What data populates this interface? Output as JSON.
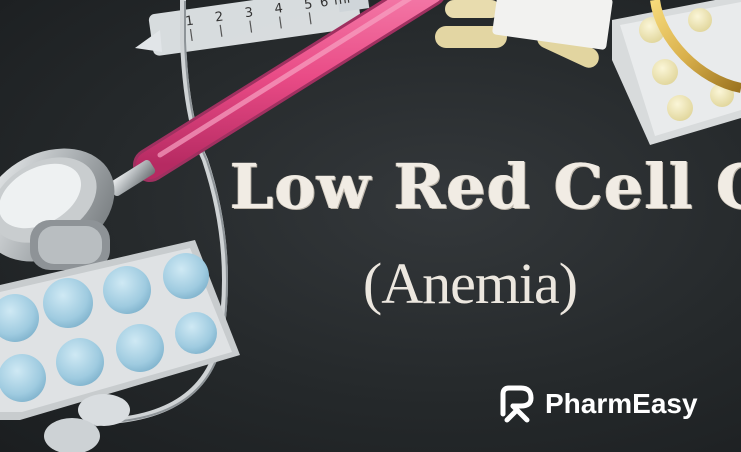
{
  "image": {
    "headline": "Low Red Cell Count",
    "subheadline": "(Anemia)",
    "brand": {
      "name": "PharmEasy",
      "logo_icon": "pharmeasy-logo-icon"
    },
    "syringe_scale": [
      "1",
      "2",
      "3",
      "4",
      "5",
      "6",
      "ml"
    ],
    "colors": {
      "background": "#25292b",
      "tubing": "#e94b86",
      "pill_blue": "#a9d3e6",
      "capsule": "#e8dcae",
      "gold": "#d9b04c",
      "text": "#f1ece4"
    }
  }
}
